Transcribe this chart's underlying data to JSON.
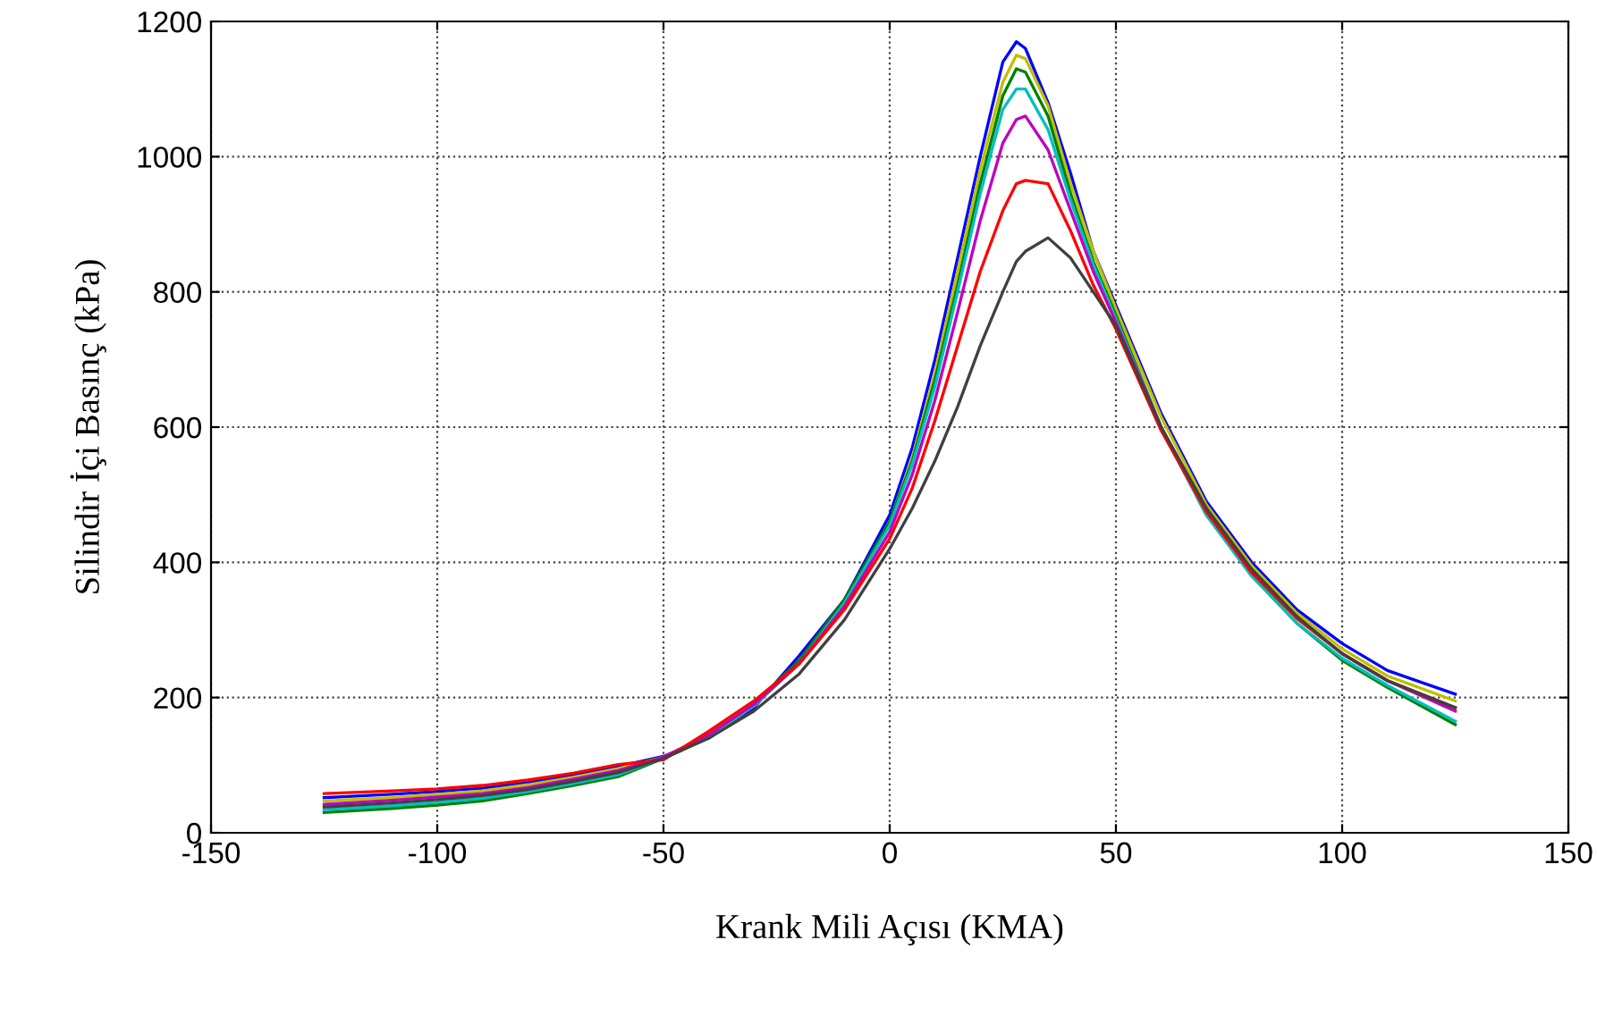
{
  "chart_data": {
    "type": "line",
    "xlabel": "Krank Mili Açısı (KMA)",
    "ylabel": "Silindir İçi Basınç (kPa)",
    "x": [
      -125,
      -110,
      -100,
      -90,
      -80,
      -70,
      -60,
      -50,
      -40,
      -30,
      -20,
      -10,
      0,
      5,
      10,
      15,
      20,
      25,
      28,
      30,
      35,
      40,
      45,
      50,
      60,
      70,
      80,
      90,
      100,
      110,
      125
    ],
    "series": [
      {
        "color": "#0000ff",
        "values": [
          52,
          57,
          61,
          66,
          74,
          85,
          98,
          113,
          140,
          185,
          262,
          345,
          470,
          570,
          700,
          850,
          1000,
          1140,
          1170,
          1160,
          1080,
          975,
          860,
          780,
          620,
          490,
          400,
          330,
          280,
          240,
          205
        ]
      },
      {
        "color": "#bfbf00",
        "values": [
          47,
          52,
          57,
          62,
          71,
          82,
          95,
          112,
          142,
          188,
          250,
          340,
          460,
          555,
          680,
          830,
          980,
          1110,
          1150,
          1145,
          1075,
          960,
          860,
          775,
          615,
          485,
          395,
          325,
          272,
          232,
          195
        ]
      },
      {
        "color": "#008000",
        "values": [
          30,
          36,
          41,
          47,
          58,
          70,
          83,
          110,
          140,
          190,
          255,
          345,
          460,
          550,
          670,
          810,
          960,
          1090,
          1130,
          1125,
          1060,
          945,
          845,
          765,
          600,
          470,
          380,
          310,
          255,
          215,
          160
        ]
      },
      {
        "color": "#00bfbf",
        "values": [
          34,
          40,
          45,
          51,
          61,
          73,
          86,
          111,
          142,
          188,
          250,
          340,
          455,
          545,
          660,
          800,
          945,
          1070,
          1100,
          1100,
          1040,
          935,
          840,
          760,
          598,
          470,
          380,
          310,
          258,
          218,
          165
        ]
      },
      {
        "color": "#bf00bf",
        "values": [
          42,
          48,
          53,
          58,
          67,
          79,
          92,
          112,
          145,
          190,
          250,
          335,
          445,
          530,
          640,
          770,
          905,
          1020,
          1055,
          1060,
          1010,
          920,
          830,
          755,
          600,
          475,
          385,
          318,
          265,
          225,
          180
        ]
      },
      {
        "color": "#ff0000",
        "values": [
          58,
          62,
          65,
          70,
          78,
          88,
          101,
          108,
          150,
          195,
          250,
          330,
          435,
          510,
          610,
          720,
          830,
          920,
          960,
          965,
          960,
          890,
          810,
          745,
          595,
          475,
          385,
          317,
          265,
          225,
          185
        ]
      },
      {
        "color": "#404040",
        "values": [
          38,
          44,
          49,
          55,
          64,
          76,
          89,
          110,
          140,
          180,
          235,
          315,
          420,
          480,
          550,
          630,
          720,
          800,
          845,
          860,
          880,
          850,
          800,
          750,
          600,
          480,
          390,
          320,
          265,
          225,
          185
        ]
      }
    ],
    "xlim": [
      -150,
      150
    ],
    "xticks": [
      -150,
      -100,
      -50,
      0,
      50,
      100,
      150
    ],
    "ylim": [
      0,
      1200
    ],
    "yticks": [
      0,
      200,
      400,
      600,
      800,
      1000,
      1200
    ],
    "grid": true,
    "line_style": "solid"
  }
}
